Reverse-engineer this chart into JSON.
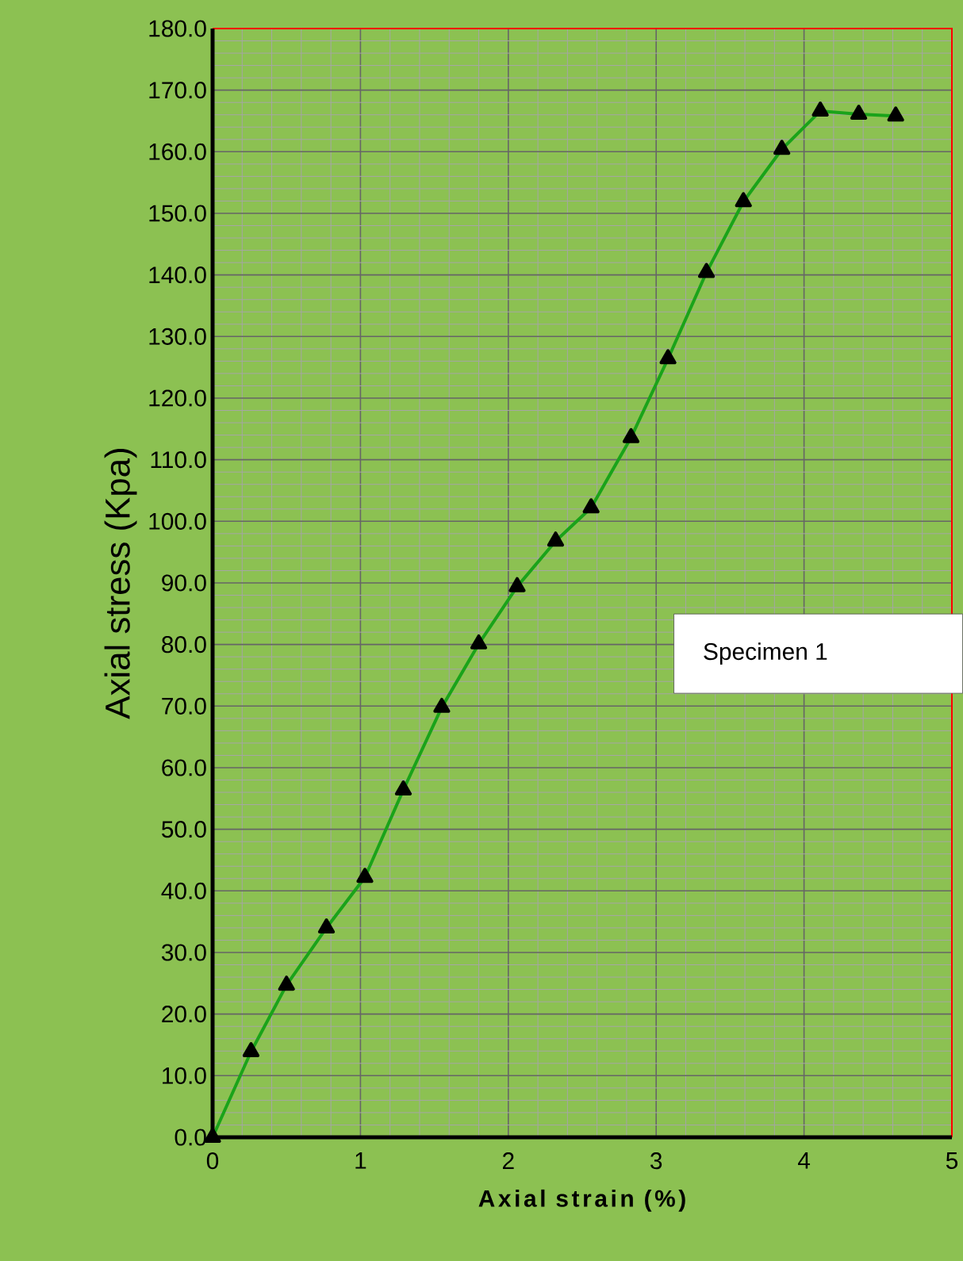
{
  "chart_data": {
    "type": "line",
    "xlabel": "Axial strain (%)",
    "ylabel": "Axial stress (Kpa)",
    "annotations": [
      "Specimen 1"
    ],
    "x": [
      0,
      0.26,
      0.5,
      0.77,
      1.03,
      1.29,
      1.55,
      1.8,
      2.06,
      2.32,
      2.56,
      2.83,
      3.08,
      3.34,
      3.59,
      3.85,
      4.11,
      4.37,
      4.62
    ],
    "series": [
      {
        "color": "#1aa31a",
        "values": [
          0,
          13.9,
          24.7,
          34.0,
          42.2,
          56.4,
          69.8,
          80.1,
          89.4,
          96.8,
          102.2,
          113.6,
          126.4,
          140.4,
          151.9,
          160.4,
          166.6,
          166.1,
          165.8
        ]
      }
    ],
    "marker": "triangle",
    "line_style": "solid",
    "grid": true,
    "xlim": [
      0,
      5
    ],
    "ylim": [
      0,
      180
    ],
    "xticks": [
      0,
      1,
      2,
      3,
      4,
      5
    ],
    "yticks": [
      {
        "value": 0,
        "label": "0.0"
      },
      {
        "value": 10,
        "label": "10.0"
      },
      {
        "value": 20,
        "label": "20.0"
      },
      {
        "value": 30,
        "label": "30.0"
      },
      {
        "value": 40,
        "label": "40.0"
      },
      {
        "value": 50,
        "label": "50.0"
      },
      {
        "value": 60,
        "label": "60.0"
      },
      {
        "value": 70,
        "label": "70.0"
      },
      {
        "value": 80,
        "label": "80.0"
      },
      {
        "value": 90,
        "label": "90.0"
      },
      {
        "value": 100,
        "label": "100.0"
      },
      {
        "value": 110,
        "label": "110.0"
      },
      {
        "value": 120,
        "label": "120.0"
      },
      {
        "value": 130,
        "label": "130.0"
      },
      {
        "value": 140,
        "label": "140.0"
      },
      {
        "value": 150,
        "label": "150.0"
      },
      {
        "value": 160,
        "label": "160.0"
      },
      {
        "value": 170,
        "label": "170.0"
      },
      {
        "value": 180,
        "label": "180.0"
      }
    ]
  }
}
